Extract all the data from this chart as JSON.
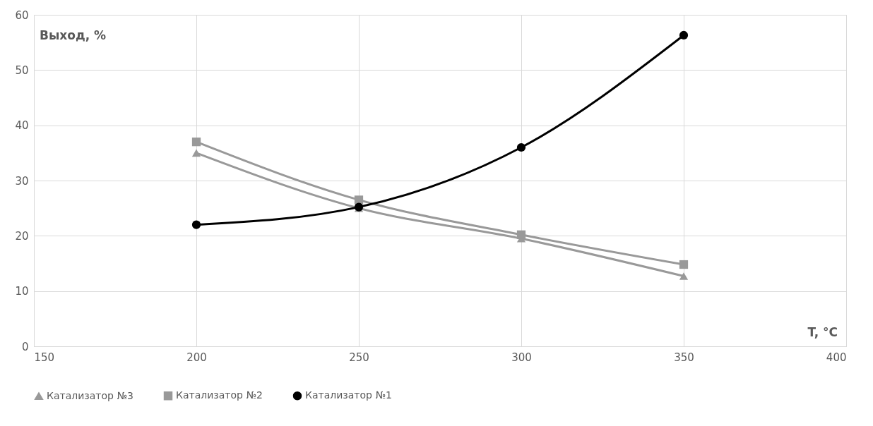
{
  "chart_data": {
    "type": "line",
    "xlabel": "T, °C",
    "ylabel": "Выход, %",
    "xlim": [
      150,
      400
    ],
    "xticks": [
      150,
      200,
      250,
      300,
      350,
      400
    ],
    "ylim": [
      0,
      60
    ],
    "yticks": [
      0,
      10,
      20,
      30,
      40,
      50,
      60
    ],
    "x": [
      200,
      250,
      300,
      350
    ],
    "series": [
      {
        "name": "Катализатор №3",
        "color": "#999999",
        "marker": "triangle",
        "values": [
          35,
          25,
          19.5,
          12.7
        ]
      },
      {
        "name": "Катализатор №2",
        "color": "#999999",
        "marker": "square",
        "values": [
          37,
          26.5,
          20.2,
          14.8
        ]
      },
      {
        "name": "Катализатор №1",
        "color": "#000000",
        "marker": "circle",
        "values": [
          22,
          25.2,
          36,
          56.3
        ]
      }
    ],
    "grid": true,
    "legend": "bottom",
    "line_style": "solid"
  }
}
